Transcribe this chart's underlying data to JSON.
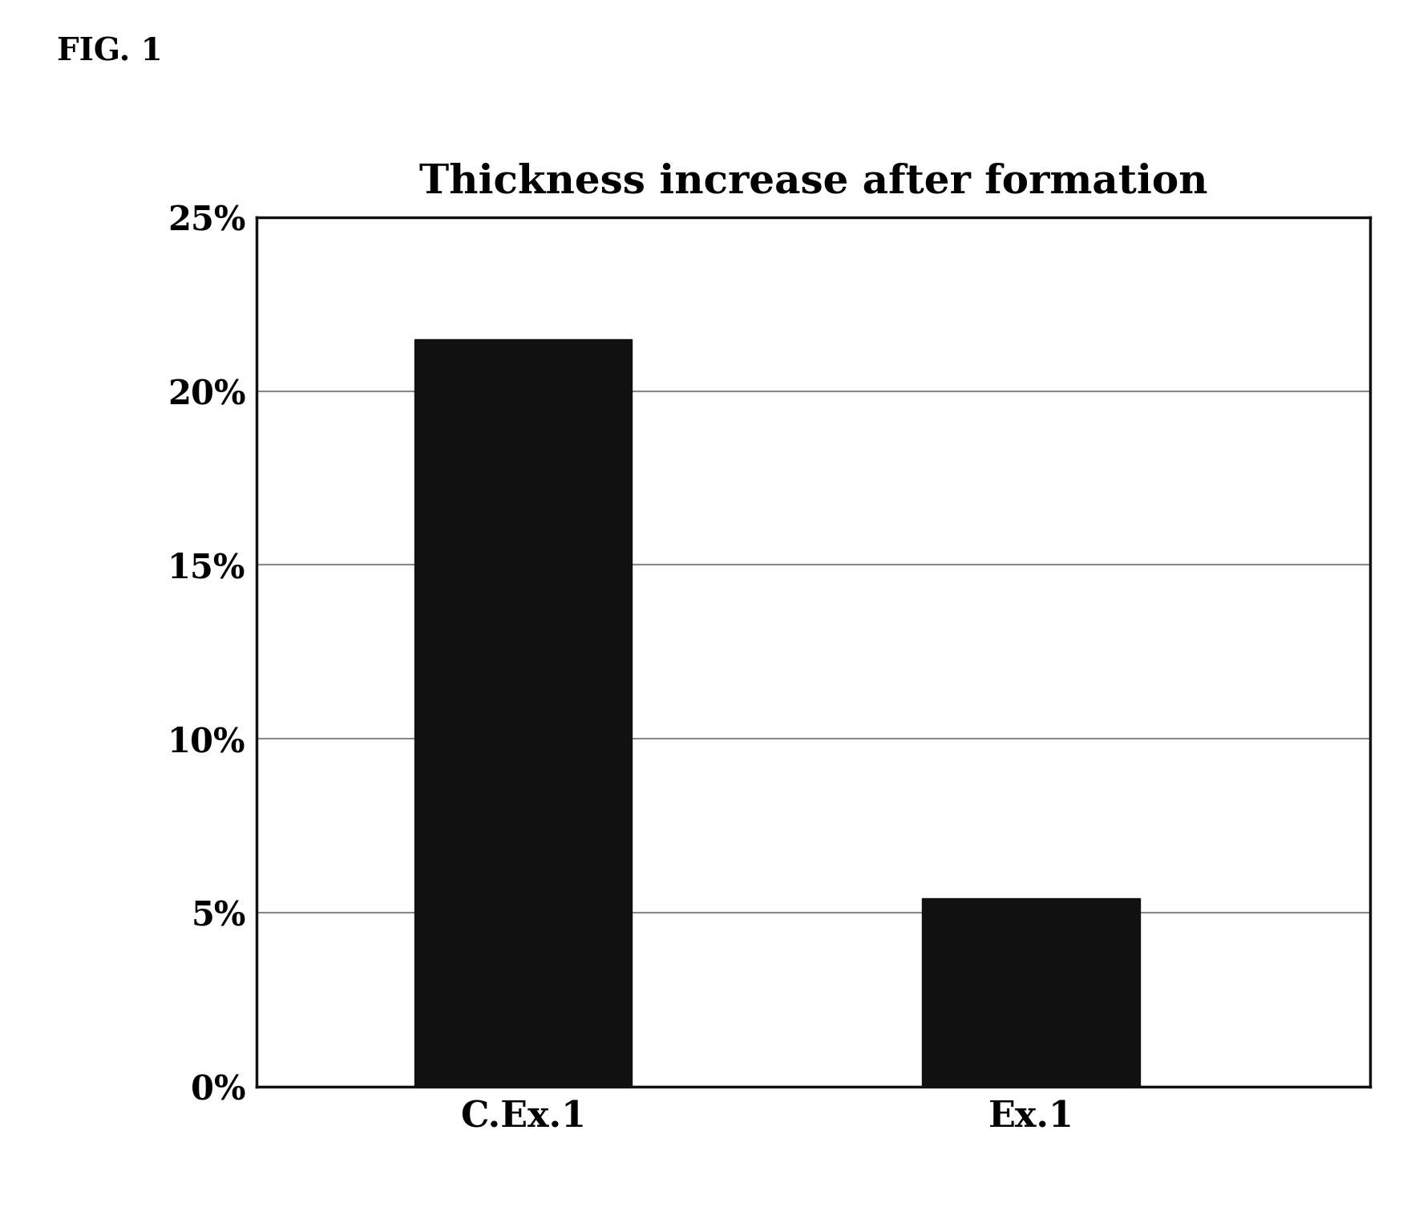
{
  "title": "Thickness increase after formation",
  "categories": [
    "C.Ex.1",
    "Ex.1"
  ],
  "values": [
    0.215,
    0.054
  ],
  "bar_color": "#111111",
  "bar_width": 0.18,
  "ylim": [
    0,
    0.25
  ],
  "yticks": [
    0.0,
    0.05,
    0.1,
    0.15,
    0.2,
    0.25
  ],
  "ytick_labels": [
    "0%",
    "5%",
    "10%",
    "15%",
    "20%",
    "25%"
  ],
  "background_color": "#ffffff",
  "title_fontsize": 36,
  "tick_fontsize": 30,
  "xlabel_fontsize": 32,
  "fig_label": "FIG. 1",
  "fig_label_fontsize": 28,
  "grid_color": "#888888",
  "grid_linewidth": 1.5,
  "spine_color": "#111111",
  "spine_linewidth": 2.5,
  "x_positions": [
    0.3,
    0.72
  ],
  "xlim": [
    0.08,
    1.0
  ]
}
